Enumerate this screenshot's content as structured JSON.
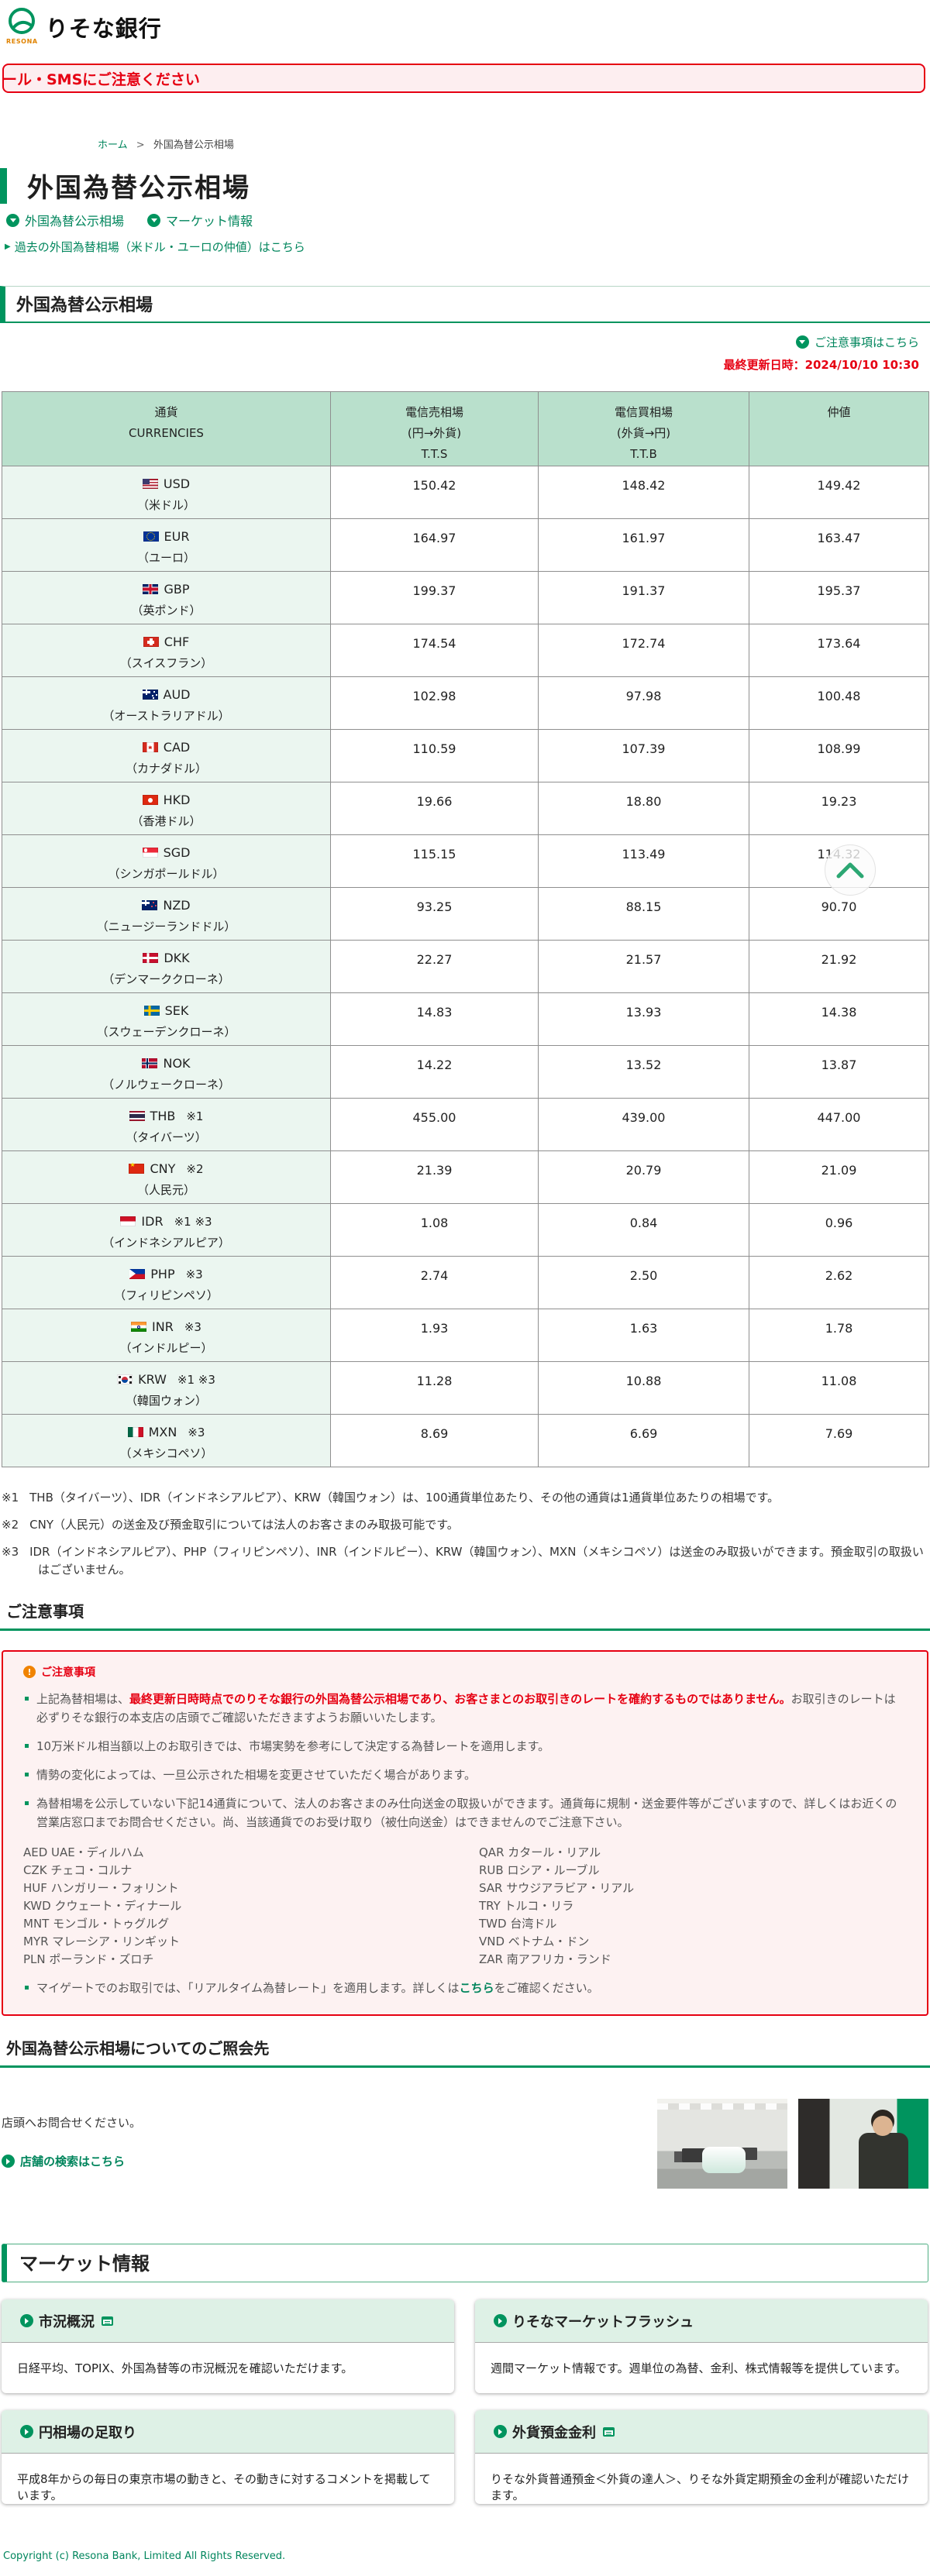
{
  "header": {
    "brand": "りそな銀行",
    "brand_sub": "RESONA"
  },
  "alert_banner": {
    "text": "ール・SMSにご注意ください"
  },
  "breadcrumb": {
    "home": "ホーム",
    "separator": ">",
    "current": "外国為替公示相場"
  },
  "page": {
    "title": "外国為替公示相場"
  },
  "quick_links": [
    {
      "label": "外国為替公示相場"
    },
    {
      "label": "マーケット情報"
    }
  ],
  "past_link": {
    "arrow": "▶",
    "label": "過去の外国為替相場（米ドル・ユーロの仲値）はこちら"
  },
  "rates_section": {
    "title": "外国為替公示相場",
    "notice_link": "ご注意事項はこちら",
    "last_updated": "最終更新日時：2024/10/10 10:30",
    "table": {
      "headers": {
        "currency": "通貨\nCURRENCIES",
        "tts": "電信売相場\n(円→外貨)\nT.T.S",
        "ttb": "電信買相場\n(外貨→円)\nT.T.B",
        "nakane": "仲値"
      },
      "rows": [
        {
          "flag": "usd",
          "code": "USD",
          "marks": "",
          "name": "（米ドル）",
          "tts": "150.42",
          "ttb": "148.42",
          "nakane": "149.42"
        },
        {
          "flag": "eur",
          "code": "EUR",
          "marks": "",
          "name": "（ユーロ）",
          "tts": "164.97",
          "ttb": "161.97",
          "nakane": "163.47"
        },
        {
          "flag": "gbp",
          "code": "GBP",
          "marks": "",
          "name": "（英ポンド）",
          "tts": "199.37",
          "ttb": "191.37",
          "nakane": "195.37"
        },
        {
          "flag": "chf",
          "code": "CHF",
          "marks": "",
          "name": "（スイスフラン）",
          "tts": "174.54",
          "ttb": "172.74",
          "nakane": "173.64"
        },
        {
          "flag": "aud",
          "code": "AUD",
          "marks": "",
          "name": "（オーストラリアドル）",
          "tts": "102.98",
          "ttb": "97.98",
          "nakane": "100.48"
        },
        {
          "flag": "cad",
          "code": "CAD",
          "marks": "",
          "name": "（カナダドル）",
          "tts": "110.59",
          "ttb": "107.39",
          "nakane": "108.99"
        },
        {
          "flag": "hkd",
          "code": "HKD",
          "marks": "",
          "name": "（香港ドル）",
          "tts": "19.66",
          "ttb": "18.80",
          "nakane": "19.23"
        },
        {
          "flag": "sgd",
          "code": "SGD",
          "marks": "",
          "name": "（シンガポールドル）",
          "tts": "115.15",
          "ttb": "113.49",
          "nakane": "114.32"
        },
        {
          "flag": "nzd",
          "code": "NZD",
          "marks": "",
          "name": "（ニュージーランドドル）",
          "tts": "93.25",
          "ttb": "88.15",
          "nakane": "90.70"
        },
        {
          "flag": "dkk",
          "code": "DKK",
          "marks": "",
          "name": "（デンマーククローネ）",
          "tts": "22.27",
          "ttb": "21.57",
          "nakane": "21.92"
        },
        {
          "flag": "sek",
          "code": "SEK",
          "marks": "",
          "name": "（スウェーデンクローネ）",
          "tts": "14.83",
          "ttb": "13.93",
          "nakane": "14.38"
        },
        {
          "flag": "nok",
          "code": "NOK",
          "marks": "",
          "name": "（ノルウェークローネ）",
          "tts": "14.22",
          "ttb": "13.52",
          "nakane": "13.87"
        },
        {
          "flag": "thb",
          "code": "THB",
          "marks": "※1",
          "name": "（タイバーツ）",
          "tts": "455.00",
          "ttb": "439.00",
          "nakane": "447.00"
        },
        {
          "flag": "cny",
          "code": "CNY",
          "marks": "※2",
          "name": "（人民元）",
          "tts": "21.39",
          "ttb": "20.79",
          "nakane": "21.09"
        },
        {
          "flag": "idr",
          "code": "IDR",
          "marks": "※1 ※3",
          "name": "（インドネシアルピア）",
          "tts": "1.08",
          "ttb": "0.84",
          "nakane": "0.96"
        },
        {
          "flag": "php",
          "code": "PHP",
          "marks": "※3",
          "name": "（フィリピンペソ）",
          "tts": "2.74",
          "ttb": "2.50",
          "nakane": "2.62"
        },
        {
          "flag": "inr",
          "code": "INR",
          "marks": "※3",
          "name": "（インドルピー）",
          "tts": "1.93",
          "ttb": "1.63",
          "nakane": "1.78"
        },
        {
          "flag": "krw",
          "code": "KRW",
          "marks": "※1 ※3",
          "name": "（韓国ウォン）",
          "tts": "11.28",
          "ttb": "10.88",
          "nakane": "11.08"
        },
        {
          "flag": "mxn",
          "code": "MXN",
          "marks": "※3",
          "name": "（メキシコペソ）",
          "tts": "8.69",
          "ttb": "6.69",
          "nakane": "7.69"
        }
      ]
    }
  },
  "footnotes": [
    {
      "mark": "※1",
      "text": "THB（タイバーツ）、IDR（インドネシアルピア）、KRW（韓国ウォン）は、100通貨単位あたり、その他の通貨は1通貨単位あたりの相場です。"
    },
    {
      "mark": "※2",
      "text": "CNY（人民元）の送金及び預金取引については法人のお客さまのみ取扱可能です。"
    },
    {
      "mark": "※3",
      "text": "IDR（インドネシアルピア）、PHP（フィリピンペソ）、INR（インドルピー）、KRW（韓国ウォン）、MXN（メキシコペソ）は送金のみ取扱いができます。預金取引の取扱いはございません。"
    }
  ],
  "notice_section": {
    "heading": "ご注意事項",
    "box_title": "ご注意事項",
    "warning_glyph": "!",
    "bullets": [
      {
        "segments": [
          {
            "t": "上記為替相場は、"
          },
          {
            "t": "最終更新日時時点でのりそな銀行の外国為替公示相場であり、お客さまとのお取引きのレートを確約するものではありません。",
            "s": "red"
          },
          {
            "t": "お取引きのレートは必ずりそな銀行の本支店の店頭でご確認いただきますようお願いいたします。"
          }
        ]
      },
      {
        "segments": [
          {
            "t": "10万米ドル相当額以上のお取引きでは、市場実勢を参考にして決定する為替レートを適用します。"
          }
        ]
      },
      {
        "segments": [
          {
            "t": "情勢の変化によっては、一旦公示された相場を変更させていただく場合があります。"
          }
        ]
      },
      {
        "segments": [
          {
            "t": "為替相場を公示していない下記14通貨について、法人のお客さまのみ仕向送金の取扱いができます。通貨毎に規制・送金要件等がございますので、詳しくはお近くの営業店窓口までお問合せください。尚、当該通貨でのお受け取り（被仕向送金）はできませんのでご注意下さい。"
          }
        ]
      }
    ],
    "currencies_left": [
      "AED UAE・ディルハム",
      "CZK チェコ・コルナ",
      "HUF ハンガリー・フォリント",
      "KWD クウェート・ディナール",
      "MNT モンゴル・トゥグルグ",
      "MYR マレーシア・リンギット",
      "PLN ポーランド・ズロチ"
    ],
    "currencies_right": [
      "QAR カタール・リアル",
      "RUB ロシア・ルーブル",
      "SAR サウジアラビア・リアル",
      "TRY トルコ・リラ",
      "TWD 台湾ドル",
      "VND ベトナム・ドン",
      "ZAR 南アフリカ・ランド"
    ],
    "mygate_bullet": {
      "segments": [
        {
          "t": "マイゲートでのお取引では、「リアルタイム為替レート」を適用します。詳しくは"
        },
        {
          "t": "こちら",
          "s": "link"
        },
        {
          "t": "をご確認ください。"
        }
      ]
    }
  },
  "contact_section": {
    "heading": "外国為替公示相場についてのご照会先",
    "text": "店頭へお問合せください。",
    "link": "店舗の検索はこちら"
  },
  "market_section": {
    "title": "マーケット情報",
    "cards": [
      {
        "title": "市況概況",
        "window_icon": true,
        "body": "日経平均、TOPIX、外国為替等の市況概況を確認いただけます。"
      },
      {
        "title": "りそなマーケットフラッシュ",
        "window_icon": false,
        "body": "週間マーケット情報です。週単位の為替、金利、株式情報等を提供しています。"
      },
      {
        "title": "円相場の足取り",
        "window_icon": false,
        "body": "平成8年からの毎日の東京市場の動きと、その動きに対するコメントを掲載しています。"
      },
      {
        "title": "外貨預金金利",
        "window_icon": true,
        "body": "りそな外貨普通預金＜外貨の達人＞、りそな外貨定期預金の金利が確認いただけます。"
      }
    ]
  },
  "footer": {
    "copyright": "Copyright (c) Resona Bank, Limited All Rights Reserved."
  }
}
